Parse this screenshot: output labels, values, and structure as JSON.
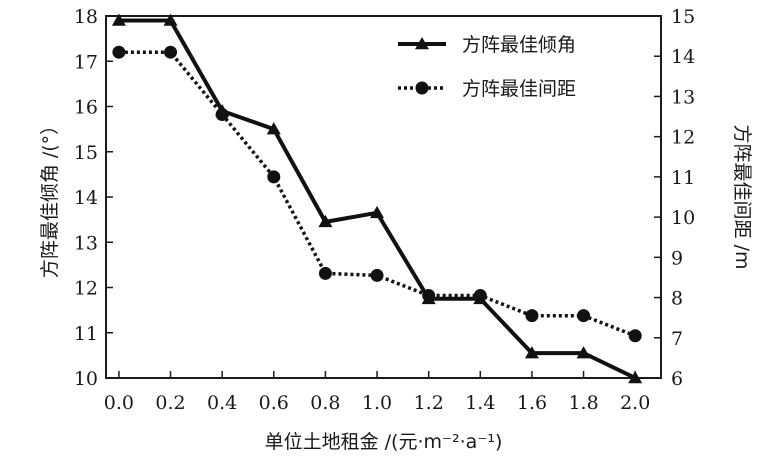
{
  "chart_data": {
    "type": "line",
    "x": [
      0.0,
      0.2,
      0.4,
      0.6,
      0.8,
      1.0,
      1.2,
      1.4,
      1.6,
      1.8,
      2.0
    ],
    "x_tick_labels": [
      "0.0",
      "0.2",
      "0.4",
      "0.6",
      "0.8",
      "1.0",
      "1.2",
      "1.4",
      "1.6",
      "1.8",
      "2.0"
    ],
    "xlim": [
      -0.05,
      2.1
    ],
    "xlabel": "单位土地租金 /(元·m⁻²·a⁻¹)",
    "ylabel_left": "方阵最佳倾角 /(°）",
    "ylabel_right": "方阵最佳间距 /m",
    "ylim_left": [
      10,
      18
    ],
    "ylim_right": [
      6,
      15
    ],
    "y_left_ticks": [
      "10",
      "11",
      "12",
      "13",
      "14",
      "15",
      "16",
      "17",
      "18"
    ],
    "y_right_ticks": [
      "6",
      "7",
      "8",
      "9",
      "10",
      "11",
      "12",
      "13",
      "14",
      "15"
    ],
    "legend_position": "top-right",
    "grid": false,
    "series": [
      {
        "name": "方阵最佳倾角",
        "axis": "left",
        "style": "solid",
        "marker": "triangle",
        "color": "#111111",
        "values": [
          17.9,
          17.9,
          15.9,
          15.5,
          13.45,
          13.65,
          11.75,
          11.75,
          10.55,
          10.55,
          10.0
        ]
      },
      {
        "name": "方阵最佳间距",
        "axis": "right",
        "style": "dotted",
        "marker": "circle",
        "color": "#111111",
        "values": [
          14.1,
          14.1,
          12.55,
          11.0,
          8.6,
          8.55,
          8.05,
          8.05,
          7.55,
          7.55,
          7.05
        ]
      }
    ]
  }
}
